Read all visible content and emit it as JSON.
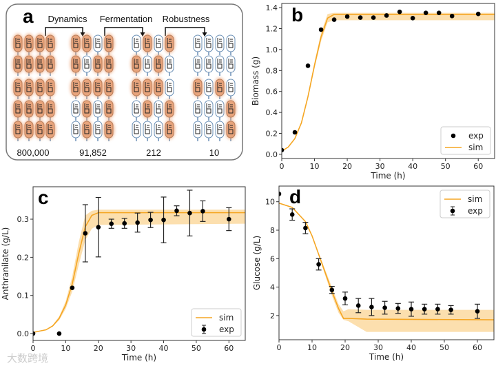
{
  "panel_a": {
    "label": "a",
    "steps": [
      "Dynamics",
      "Fermentation",
      "Robustness"
    ],
    "counts": [
      "800,000",
      "91,852",
      "212",
      "10"
    ],
    "group_patterns": [
      [
        "OOOO",
        "OOOO",
        "OOOO",
        "OOOO",
        "OOOO"
      ],
      [
        "OOWO",
        "OWOO",
        "OOOO",
        "WOWO",
        "WOWO"
      ],
      [
        "WOWO",
        "OWOW",
        "OOOW",
        "WOWO",
        "WWWO"
      ],
      [
        "WWWW",
        "WWWW",
        "OWOW",
        "WWWO",
        "WWWO"
      ]
    ]
  },
  "colors": {
    "sim": "#f5a623",
    "band": "#fcd9a0",
    "exp": "#000000",
    "cell_on": "#e8a47c",
    "cell_off": "#ffffff"
  },
  "watermark": "大数跨境",
  "chart_data": [
    {
      "id": "b",
      "panel_label": "b",
      "type": "line+scatter",
      "xlabel": "Time (h)",
      "ylabel": "Biomass (g)",
      "xlim": [
        0,
        65
      ],
      "ylim": [
        -0.04,
        1.44
      ],
      "xticks": [
        0,
        10,
        20,
        30,
        40,
        50,
        60
      ],
      "xtick_labels": [
        "0",
        "10",
        "20",
        "30",
        "40",
        "50",
        "60"
      ],
      "yticks": [
        0,
        0.2,
        0.4,
        0.6,
        0.8,
        1.0,
        1.2,
        1.4
      ],
      "ytick_labels": [
        "0.0",
        "0.2",
        "0.4",
        "0.6",
        "0.8",
        "1.0",
        "1.2",
        "1.4"
      ],
      "legend": {
        "placement": "bottom-right",
        "entries": [
          "exp",
          "sim"
        ]
      },
      "exp": {
        "x": [
          0,
          4,
          8,
          12,
          16,
          20,
          24,
          28,
          32,
          36,
          40,
          44,
          48,
          52,
          60
        ],
        "y": [
          0.04,
          0.21,
          0.845,
          1.19,
          1.285,
          1.315,
          1.305,
          1.305,
          1.325,
          1.36,
          1.3,
          1.35,
          1.35,
          1.32,
          1.34
        ]
      },
      "sim": {
        "x": [
          0,
          2,
          4,
          6,
          8,
          10,
          12,
          14,
          16,
          20,
          65
        ],
        "y": [
          0.03,
          0.07,
          0.15,
          0.3,
          0.55,
          0.85,
          1.12,
          1.3,
          1.335,
          1.335,
          1.335
        ],
        "lower": [
          0.03,
          0.07,
          0.15,
          0.29,
          0.53,
          0.82,
          1.08,
          1.26,
          1.28,
          1.28,
          1.28
        ],
        "upper": [
          0.03,
          0.07,
          0.15,
          0.31,
          0.57,
          0.88,
          1.16,
          1.34,
          1.35,
          1.35,
          1.35
        ]
      }
    },
    {
      "id": "c",
      "panel_label": "c",
      "type": "line+errorbar",
      "xlabel": "Time (h)",
      "ylabel": "Anthranilate (g/L)",
      "xlim": [
        0,
        65
      ],
      "ylim": [
        -0.018,
        0.385
      ],
      "xticks": [
        0,
        10,
        20,
        30,
        40,
        50,
        60
      ],
      "xtick_labels": [
        "0",
        "10",
        "20",
        "30",
        "40",
        "50",
        "60"
      ],
      "yticks": [
        0,
        0.1,
        0.2,
        0.3
      ],
      "ytick_labels": [
        "0.0",
        "0.1",
        "0.2",
        "0.3"
      ],
      "legend": {
        "placement": "bottom-right",
        "entries": [
          "sim",
          "exp"
        ]
      },
      "exp": {
        "x": [
          0,
          8,
          12,
          16,
          20,
          24,
          28,
          32,
          36,
          40,
          44,
          48,
          52,
          60
        ],
        "y": [
          0,
          0,
          0.12,
          0.263,
          0.279,
          0.288,
          0.289,
          0.291,
          0.298,
          0.298,
          0.322,
          0.316,
          0.321,
          0.3
        ],
        "err": [
          0,
          0,
          0,
          0.075,
          0.078,
          0.012,
          0.013,
          0.025,
          0.02,
          0.06,
          0.013,
          0.06,
          0.027,
          0.03
        ]
      },
      "sim": {
        "x": [
          0,
          4,
          6,
          8,
          10,
          12,
          14,
          16,
          18,
          20,
          65
        ],
        "y": [
          0.003,
          0.01,
          0.02,
          0.04,
          0.075,
          0.13,
          0.21,
          0.28,
          0.31,
          0.317,
          0.317
        ],
        "lower": [
          0.003,
          0.01,
          0.018,
          0.035,
          0.065,
          0.11,
          0.18,
          0.245,
          0.275,
          0.285,
          0.288
        ],
        "upper": [
          0.003,
          0.01,
          0.022,
          0.045,
          0.085,
          0.15,
          0.24,
          0.31,
          0.322,
          0.325,
          0.325
        ]
      }
    },
    {
      "id": "d",
      "panel_label": "d",
      "type": "line+errorbar",
      "xlabel": "Time (h)",
      "ylabel": "Glucose (g/L)",
      "xlim": [
        0,
        65
      ],
      "ylim": [
        0.3,
        11.1
      ],
      "xticks": [
        0,
        10,
        20,
        30,
        40,
        50,
        60
      ],
      "xtick_labels": [
        "0",
        "10",
        "20",
        "30",
        "40",
        "50",
        "60"
      ],
      "yticks": [
        2,
        4,
        6,
        8,
        10
      ],
      "ytick_labels": [
        "2",
        "4",
        "6",
        "8",
        "10"
      ],
      "legend": {
        "placement": "top-right",
        "entries": [
          "sim",
          "exp"
        ]
      },
      "exp": {
        "x": [
          0,
          4,
          8,
          12,
          16,
          20,
          24,
          28,
          32,
          36,
          40,
          44,
          48,
          52,
          60
        ],
        "y": [
          10.55,
          9.1,
          8.15,
          5.6,
          3.8,
          3.2,
          2.7,
          2.6,
          2.55,
          2.5,
          2.45,
          2.45,
          2.45,
          2.4,
          2.3
        ],
        "err": [
          0,
          0.4,
          0.4,
          0.4,
          0.25,
          0.45,
          0.5,
          0.6,
          0.45,
          0.35,
          0.5,
          0.35,
          0.35,
          0.3,
          0.5
        ]
      },
      "sim": {
        "x": [
          0,
          4,
          8,
          10,
          12,
          14,
          16,
          18,
          19.5,
          21,
          26.5,
          65
        ],
        "y": [
          9.9,
          9.6,
          8.6,
          7.6,
          6.3,
          5.0,
          3.7,
          2.5,
          1.8,
          1.8,
          1.75,
          1.7
        ],
        "lower": [
          9.9,
          9.6,
          8.6,
          7.6,
          6.2,
          4.8,
          3.4,
          2.2,
          1.7,
          1.6,
          0.85,
          0.85
        ],
        "upper": [
          9.9,
          9.6,
          8.6,
          7.6,
          6.4,
          5.2,
          4.0,
          2.8,
          2.3,
          2.45,
          2.4,
          2.4
        ]
      }
    }
  ]
}
